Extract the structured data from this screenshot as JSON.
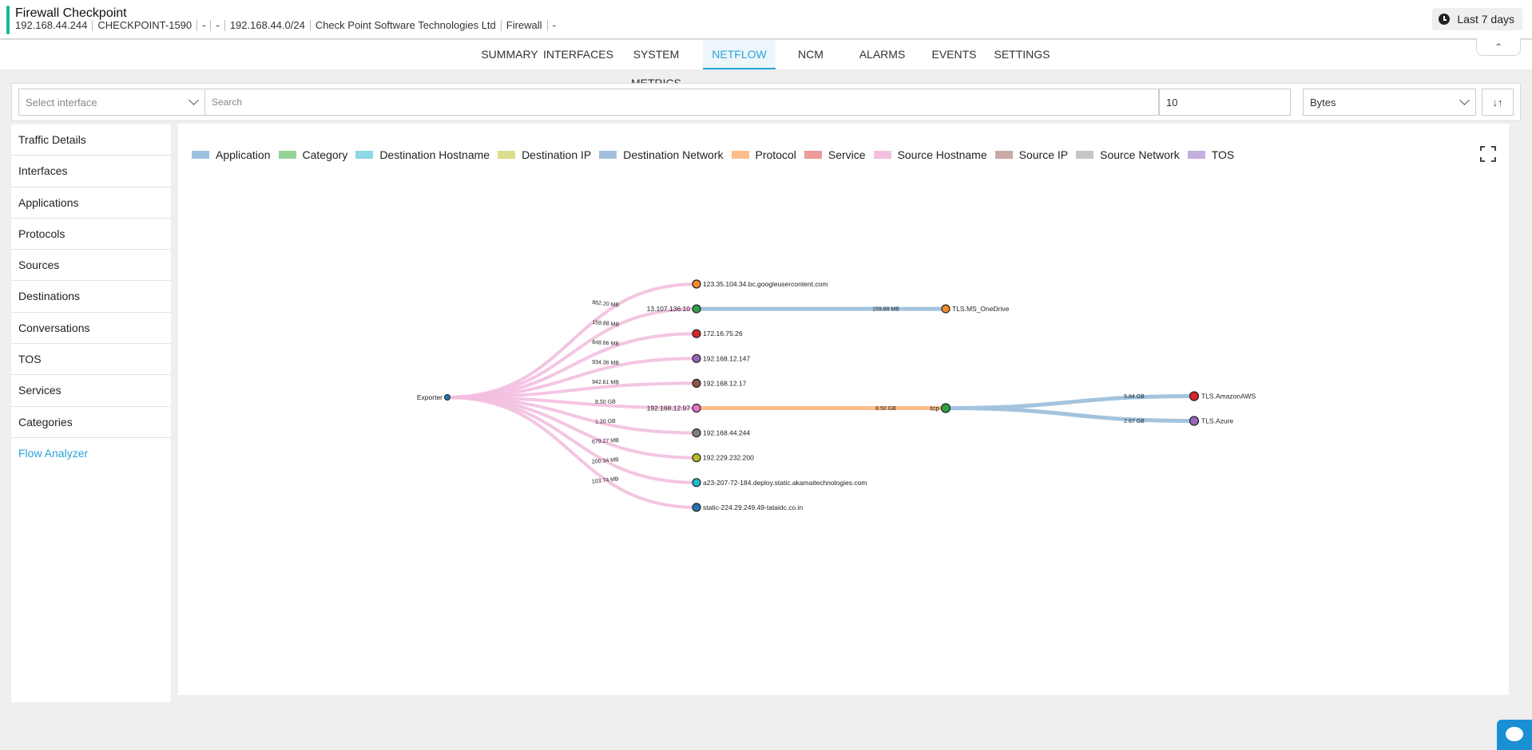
{
  "header": {
    "title": "Firewall Checkpoint",
    "meta": [
      "192.168.44.244",
      "CHECKPOINT-1590",
      "-",
      "-",
      "192.168.44.0/24",
      "Check Point Software Technologies Ltd",
      "Firewall",
      "-"
    ],
    "time_range": "Last 7 days"
  },
  "tabs": [
    "SUMMARY",
    "INTERFACES",
    "SYSTEM METRICS",
    "NETFLOW",
    "NCM",
    "ALARMS",
    "EVENTS",
    "SETTINGS"
  ],
  "active_tab": "NETFLOW",
  "filters": {
    "interface_placeholder": "Select interface",
    "search_placeholder": "Search",
    "count_value": "10",
    "metric_value": "Bytes"
  },
  "sidebar": {
    "items": [
      "Traffic Details",
      "Interfaces",
      "Applications",
      "Protocols",
      "Sources",
      "Destinations",
      "Conversations",
      "TOS",
      "Services",
      "Categories",
      "Flow Analyzer"
    ],
    "active": "Flow Analyzer"
  },
  "legend": [
    {
      "label": "Application",
      "color": "#9ec1e0"
    },
    {
      "label": "Category",
      "color": "#94d39a"
    },
    {
      "label": "Destination Hostname",
      "color": "#8fd8e6"
    },
    {
      "label": "Destination IP",
      "color": "#dbdc8c"
    },
    {
      "label": "Destination Network",
      "color": "#a3bfdc"
    },
    {
      "label": "Protocol",
      "color": "#fdbd8a"
    },
    {
      "label": "Service",
      "color": "#ec9a9a"
    },
    {
      "label": "Source Hostname",
      "color": "#f3bfe0"
    },
    {
      "label": "Source IP",
      "color": "#c9aaa4"
    },
    {
      "label": "Source Network",
      "color": "#c6c6c6"
    },
    {
      "label": "TOS",
      "color": "#c5aee0"
    }
  ],
  "flow": {
    "root": "Exporter",
    "level1": [
      {
        "label": "123.35.104.34.bc.googleusercontent.com",
        "link": "862.20 MB",
        "color": "#f58a2b"
      },
      {
        "label": "13.107.136.10",
        "link": "159.88 MB",
        "color": "#2ea043"
      },
      {
        "label": "172.16.75.26",
        "link": "848.66 MB",
        "color": "#d62728"
      },
      {
        "label": "192.168.12.147",
        "link": "934.36 MB",
        "color": "#9467bd"
      },
      {
        "label": "192.168.12.17",
        "link": "942.61 MB",
        "color": "#8c564b"
      },
      {
        "label": "192.168.12.97",
        "link": "8.50 GB",
        "color": "#e377c2"
      },
      {
        "label": "192.168.44.244",
        "link": "1.20 GB",
        "color": "#7f7f7f"
      },
      {
        "label": "192.229.232.200",
        "link": "679.27 MB",
        "color": "#bcbd22"
      },
      {
        "label": "a23-207-72-184.deploy.static.akamaitechnologies.com",
        "link": "200.34 MB",
        "color": "#17becf"
      },
      {
        "label": "static-224.29.249.49-tataidc.co.in",
        "link": "103.74 MB",
        "color": "#1f77b4"
      }
    ],
    "level2": [
      {
        "label": "TLS.MS_OneDrive",
        "from": 1,
        "link": "159.88 MB",
        "color": "#f58a2b"
      },
      {
        "label": "tcp",
        "from": 5,
        "link": "8.50 GB",
        "color": "#2ea043"
      }
    ],
    "level3": [
      {
        "label": "TLS.AmazonAWS",
        "from": 1,
        "link": "5.84 GB",
        "color": "#d62728"
      },
      {
        "label": "TLS.Azure",
        "from": 1,
        "link": "2.67 GB",
        "color": "#9467bd"
      }
    ]
  }
}
